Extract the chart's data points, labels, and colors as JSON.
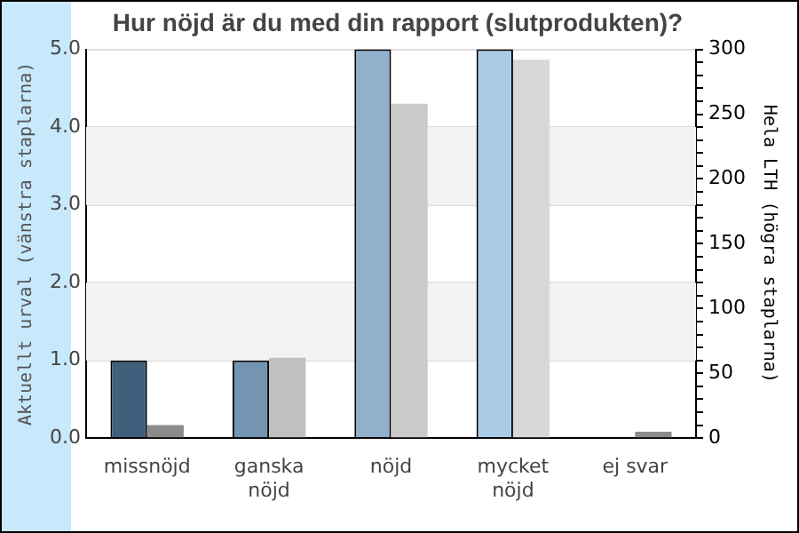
{
  "chart_data": {
    "type": "bar",
    "title": "Hur nöjd är du med din rapport (slutprodukten)?",
    "ylabel": "Aktuellt urval (vänstra staplarna)",
    "y2label": "Hela LTH (högra staplarna)",
    "categories": [
      "missnöjd",
      "ganska nöjd",
      "nöjd",
      "mycket nöjd",
      "ej svar"
    ],
    "series": [
      {
        "colors": [
          "#3f5f7c",
          "#7395b2",
          "#90b0cc",
          "#aacbe6",
          "#aacbe6"
        ],
        "values": [
          1,
          1,
          5,
          5,
          0
        ]
      },
      {
        "axis": "y2",
        "colors": [
          "#8c8c8c",
          "#c0c0c0",
          "#cacaca",
          "#d8d8d8",
          "#8c8c8c"
        ],
        "values": [
          10,
          62,
          258,
          292,
          5
        ]
      }
    ],
    "ylim": [
      0,
      5
    ],
    "yticks": [
      {
        "value": 0,
        "label": "0.0"
      },
      {
        "value": 1,
        "label": "1.0"
      },
      {
        "value": 2,
        "label": "2.0"
      },
      {
        "value": 3,
        "label": "3.0"
      },
      {
        "value": 4,
        "label": "4.0"
      },
      {
        "value": 5,
        "label": "5.0"
      }
    ],
    "y2lim": [
      0,
      300
    ],
    "y2ticks": [
      0,
      {
        "value": 10,
        "label": null
      },
      {
        "value": 20,
        "label": null
      },
      {
        "value": 30,
        "label": null
      },
      {
        "value": 40,
        "label": null
      },
      50,
      {
        "value": 60,
        "label": null
      },
      {
        "value": 70,
        "label": null
      },
      {
        "value": 80,
        "label": null
      },
      {
        "value": 90,
        "label": null
      },
      100,
      {
        "value": 110,
        "label": null
      },
      {
        "value": 120,
        "label": null
      },
      {
        "value": 130,
        "label": null
      },
      {
        "value": 140,
        "label": null
      },
      150,
      {
        "value": 160,
        "label": null
      },
      {
        "value": 170,
        "label": null
      },
      {
        "value": 180,
        "label": null
      },
      {
        "value": 190,
        "label": null
      },
      200,
      {
        "value": 210,
        "label": null
      },
      {
        "value": 220,
        "label": null
      },
      {
        "value": 230,
        "label": null
      },
      {
        "value": 240,
        "label": null
      },
      250,
      {
        "value": 260,
        "label": null
      },
      {
        "value": 270,
        "label": null
      },
      {
        "value": 280,
        "label": null
      },
      {
        "value": 290,
        "label": null
      },
      300
    ],
    "bands": [
      {
        "axis": "y",
        "from": 1,
        "to": 2,
        "color": "#f3f3f3"
      },
      {
        "axis": "y",
        "from": 3,
        "to": 4,
        "color": "#f3f3f3"
      }
    ],
    "grid": "y",
    "legend": false
  }
}
